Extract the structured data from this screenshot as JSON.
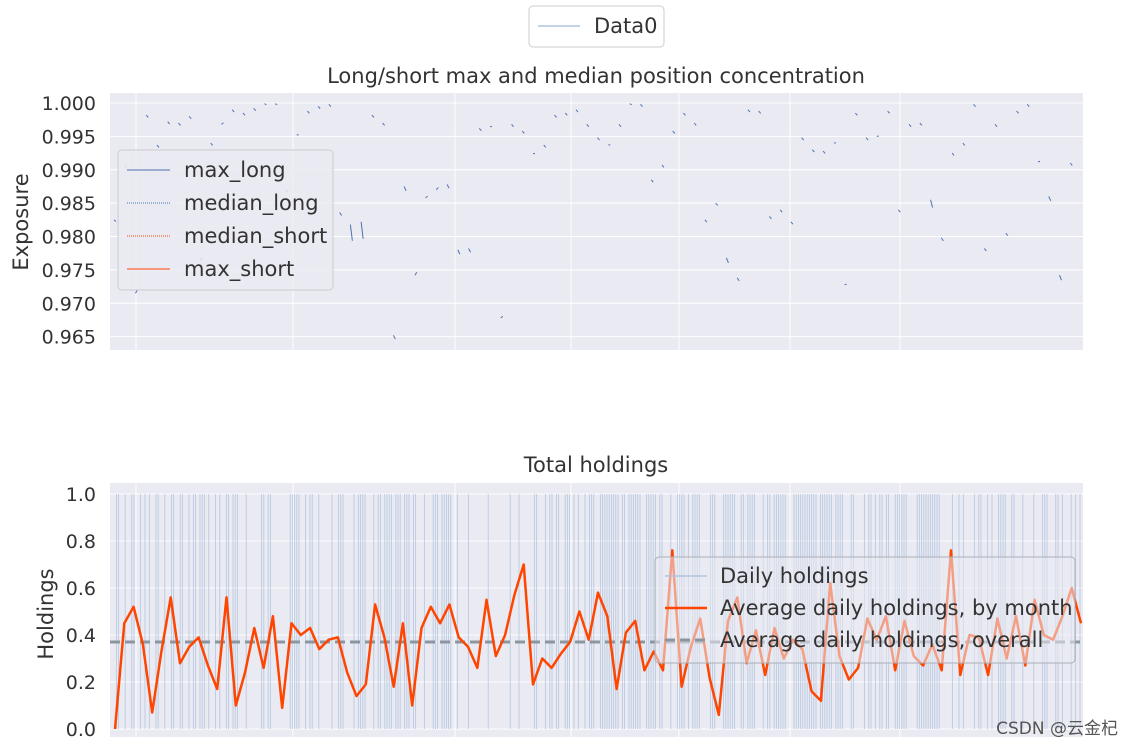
{
  "figure_legend": {
    "label": "Data0"
  },
  "watermark": "CSDN @云金杞",
  "colors": {
    "panel_bg": "#eaeaf2",
    "grid": "#ffffff",
    "long": "#4c72b0",
    "short": "#ff4500",
    "daily": "#b0c4de",
    "overall": "#8c96a0"
  },
  "chart_data": [
    {
      "type": "scatter",
      "title": "Long/short max and median position concentration",
      "ylabel": "Exposure",
      "xlabel": "",
      "ylim": [
        0.963,
        1.0015
      ],
      "yticks": [
        "1.000",
        "0.995",
        "0.990",
        "0.985",
        "0.980",
        "0.975",
        "0.970",
        "0.965"
      ],
      "grid": true,
      "legend_position": "upper-left",
      "series": [
        {
          "name": "max_long",
          "values": []
        },
        {
          "name": "median_long",
          "values": []
        },
        {
          "name": "median_short",
          "values": []
        },
        {
          "name": "max_short",
          "values": []
        }
      ],
      "observed_segments": [
        [
          0.9825,
          0.9824
        ],
        [
          0.9907,
          0.9905
        ],
        [
          0.9715,
          0.9722
        ],
        [
          0.9982,
          0.998
        ],
        [
          0.9937,
          0.9935
        ],
        [
          0.9972,
          0.997
        ],
        [
          0.997,
          0.9968
        ],
        [
          0.998,
          0.9978
        ],
        [
          0.9768,
          0.9765
        ],
        [
          0.994,
          0.9938
        ],
        [
          0.9968,
          0.9972
        ],
        [
          0.999,
          0.9988
        ],
        [
          0.9985,
          0.9983
        ],
        [
          0.9992,
          0.999
        ],
        [
          0.9999,
          0.9999
        ],
        [
          0.9999,
          0.9999
        ],
        [
          0.987,
          0.9868
        ],
        [
          0.9952,
          0.9954
        ],
        [
          0.9988,
          0.9986
        ],
        [
          0.9995,
          0.9993
        ],
        [
          0.9998,
          0.9996
        ],
        [
          0.9836,
          0.9833
        ],
        [
          0.9818,
          0.9795
        ],
        [
          0.9822,
          0.9798
        ],
        [
          0.9982,
          0.998
        ],
        [
          0.997,
          0.9968
        ],
        [
          0.9652,
          0.9648
        ],
        [
          0.9875,
          0.987
        ],
        [
          0.9742,
          0.9748
        ],
        [
          0.9858,
          0.9862
        ],
        [
          0.987,
          0.9875
        ],
        [
          0.9878,
          0.9874
        ],
        [
          0.978,
          0.9775
        ],
        [
          0.9782,
          0.9778
        ],
        [
          0.9962,
          0.996
        ],
        [
          0.9965,
          0.9966
        ],
        [
          0.9678,
          0.9682
        ],
        [
          0.9968,
          0.9966
        ],
        [
          0.9958,
          0.9956
        ],
        [
          0.9924,
          0.9926
        ],
        [
          0.9937,
          0.9935
        ],
        [
          0.9982,
          0.998
        ],
        [
          0.9985,
          0.9983
        ],
        [
          0.999,
          0.9988
        ],
        [
          0.9968,
          0.9966
        ],
        [
          0.9948,
          0.9946
        ],
        [
          0.9937,
          0.9939
        ],
        [
          0.9968,
          0.9966
        ],
        [
          0.9999,
          0.9999
        ],
        [
          0.9998,
          0.9996
        ],
        [
          0.9885,
          0.9883
        ],
        [
          0.9907,
          0.9905
        ],
        [
          0.9958,
          0.9956
        ],
        [
          0.9985,
          0.9983
        ],
        [
          0.997,
          0.9968
        ],
        [
          0.9825,
          0.9823
        ],
        [
          0.985,
          0.9848
        ],
        [
          0.9768,
          0.9762
        ],
        [
          0.9738,
          0.9735
        ],
        [
          0.999,
          0.9988
        ],
        [
          0.9988,
          0.9986
        ],
        [
          0.983,
          0.9828
        ],
        [
          0.984,
          0.9838
        ],
        [
          0.9822,
          0.982
        ],
        [
          0.9948,
          0.9946
        ],
        [
          0.993,
          0.9928
        ],
        [
          0.9928,
          0.9926
        ],
        [
          0.994,
          0.9942
        ],
        [
          0.9728,
          0.973
        ],
        [
          0.9985,
          0.9983
        ],
        [
          0.9948,
          0.9946
        ],
        [
          0.995,
          0.9952
        ],
        [
          0.9988,
          0.9986
        ],
        [
          0.984,
          0.9838
        ],
        [
          0.9968,
          0.9966
        ],
        [
          0.997,
          0.9968
        ],
        [
          0.9855,
          0.9845
        ],
        [
          0.9798,
          0.9795
        ],
        [
          0.9925,
          0.9923
        ],
        [
          0.994,
          0.9938
        ],
        [
          0.9998,
          0.9996
        ],
        [
          0.9782,
          0.978
        ],
        [
          0.9968,
          0.9966
        ],
        [
          0.9805,
          0.9803
        ],
        [
          0.9988,
          0.9986
        ],
        [
          0.9998,
          0.9996
        ],
        [
          0.9912,
          0.9914
        ],
        [
          0.986,
          0.9855
        ],
        [
          0.9742,
          0.9736
        ],
        [
          0.991,
          0.9908
        ]
      ]
    },
    {
      "type": "line",
      "title": "Total holdings",
      "ylabel": "Holdings",
      "xlabel": "",
      "ylim": [
        0.0,
        1.03
      ],
      "yticks": [
        "1.0",
        "0.8",
        "0.6",
        "0.4",
        "0.2",
        "0.0"
      ],
      "grid": true,
      "legend_position": "center-right",
      "series": [
        {
          "name": "Daily holdings",
          "values": []
        },
        {
          "name": "Average daily holdings, by month",
          "values": [
            0.0,
            0.45,
            0.52,
            0.36,
            0.07,
            0.33,
            0.56,
            0.28,
            0.35,
            0.39,
            0.27,
            0.17,
            0.56,
            0.1,
            0.24,
            0.43,
            0.26,
            0.48,
            0.09,
            0.45,
            0.4,
            0.43,
            0.34,
            0.38,
            0.39,
            0.24,
            0.14,
            0.19,
            0.53,
            0.39,
            0.18,
            0.45,
            0.1,
            0.43,
            0.52,
            0.45,
            0.53,
            0.39,
            0.35,
            0.26,
            0.55,
            0.31,
            0.4,
            0.57,
            0.7,
            0.19,
            0.3,
            0.26,
            0.32,
            0.37,
            0.5,
            0.38,
            0.58,
            0.48,
            0.17,
            0.41,
            0.46,
            0.25,
            0.33,
            0.25,
            0.76,
            0.18,
            0.35,
            0.47,
            0.22,
            0.06,
            0.46,
            0.56,
            0.28,
            0.42,
            0.23,
            0.43,
            0.3,
            0.38,
            0.34,
            0.16,
            0.12,
            0.62,
            0.31,
            0.21,
            0.26,
            0.47,
            0.38,
            0.48,
            0.25,
            0.46,
            0.31,
            0.27,
            0.36,
            0.25,
            0.76,
            0.23,
            0.4,
            0.39,
            0.23,
            0.47,
            0.3,
            0.48,
            0.27,
            0.55,
            0.4,
            0.38,
            0.48,
            0.6,
            0.45
          ]
        },
        {
          "name": "Average daily holdings, overall",
          "values": [
            0.37
          ]
        }
      ]
    }
  ]
}
